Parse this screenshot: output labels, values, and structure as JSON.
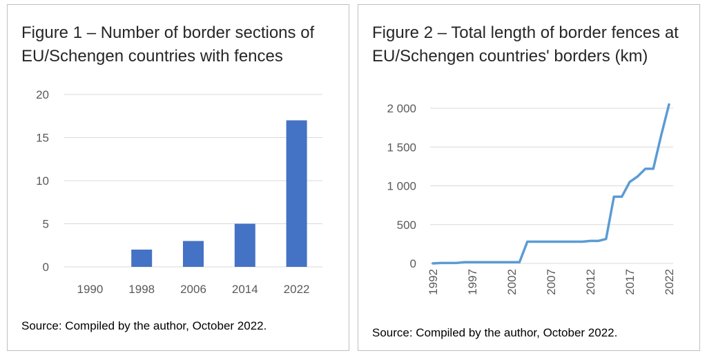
{
  "chart_data": [
    {
      "type": "bar",
      "title": "Figure  1 – Number of border sections of EU/Schengen countries with fences",
      "source": "Source: Compiled by the author, October 2022.",
      "categories": [
        "1990",
        "1998",
        "2006",
        "2014",
        "2022"
      ],
      "values": [
        0,
        2,
        3,
        5,
        17
      ],
      "yticks": [
        "0",
        "5",
        "10",
        "15",
        "20"
      ],
      "ylim": [
        0,
        20
      ],
      "grid": true,
      "color": "#4472c4"
    },
    {
      "type": "line",
      "title": "Figure 2 – Total length of border fences at EU/Schengen countries' borders (km)",
      "source": "Source: Compiled by the author, October 2022.",
      "x": [
        1992,
        1993,
        1994,
        1995,
        1996,
        1997,
        1998,
        1999,
        2000,
        2001,
        2002,
        2003,
        2004,
        2005,
        2006,
        2007,
        2008,
        2009,
        2010,
        2011,
        2012,
        2013,
        2014,
        2015,
        2016,
        2017,
        2018,
        2019,
        2020,
        2021,
        2022
      ],
      "values": [
        0,
        5,
        5,
        5,
        15,
        15,
        15,
        15,
        15,
        15,
        15,
        15,
        280,
        280,
        280,
        280,
        280,
        280,
        280,
        280,
        290,
        290,
        315,
        860,
        860,
        1050,
        1120,
        1220,
        1220,
        1650,
        2050
      ],
      "xticks": [
        "1992",
        "1997",
        "2002",
        "2007",
        "2012",
        "2017",
        "2022"
      ],
      "yticks": [
        "0",
        "500",
        "1 000",
        "1 500",
        "2 000"
      ],
      "ylim": [
        0,
        2000
      ],
      "xlim": [
        1992,
        2022
      ],
      "grid": true,
      "color": "#5b9bd5"
    }
  ]
}
